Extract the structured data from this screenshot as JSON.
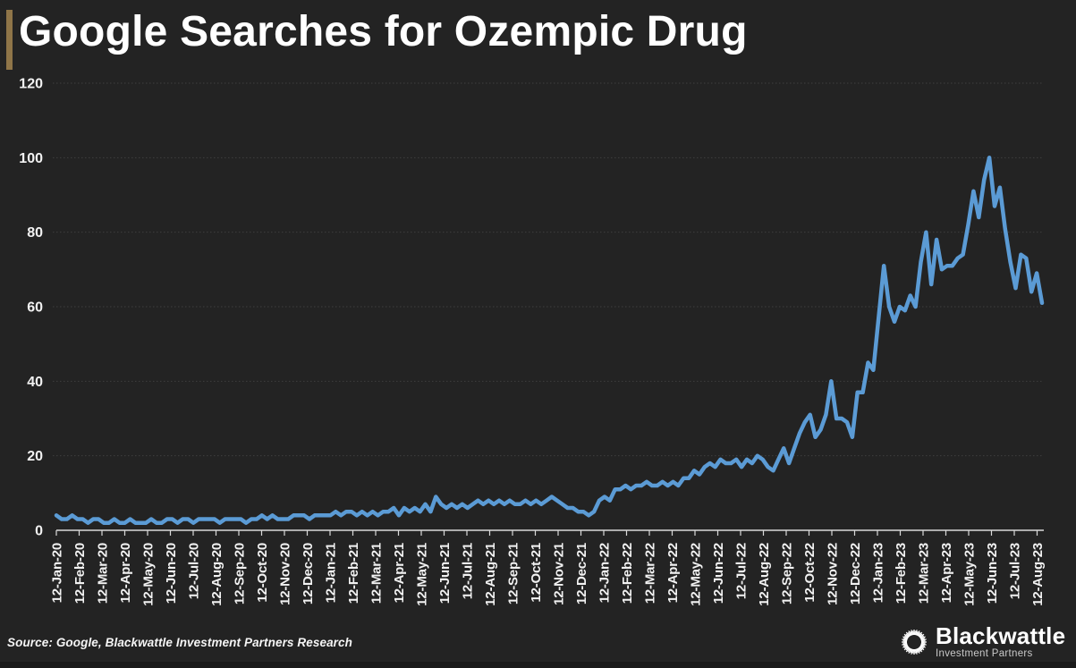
{
  "header": {
    "title": "Google Searches for Ozempic Drug"
  },
  "footer": {
    "source_note": "Source: Google, Blackwattle Investment Partners Research",
    "brand": {
      "icon": "sunburst-logo-icon",
      "name": "Blackwattle",
      "tagline": "Investment Partners"
    }
  },
  "colors": {
    "background": "#232323",
    "accent_bar": "#8F7548",
    "line": "#5B9BD5",
    "grid": "#3F3F3F",
    "axis": "#D9D9D9",
    "tick_text": "#F2F2F2",
    "bottom_strip": "#1A1A1A"
  },
  "chart_data": {
    "type": "line",
    "title": "Google Searches for Ozempic Drug",
    "xlabel": "",
    "ylabel": "",
    "ylim": [
      0,
      120
    ],
    "y_ticks": [
      0,
      20,
      40,
      60,
      80,
      100,
      120
    ],
    "grid": "horizontal-dotted",
    "legend": "none",
    "x_frequency": "weekly",
    "x_tick_rotation": -90,
    "x_tick_labels": [
      "12-Jan-20",
      "12-Feb-20",
      "12-Mar-20",
      "12-Apr-20",
      "12-May-20",
      "12-Jun-20",
      "12-Jul-20",
      "12-Aug-20",
      "12-Sep-20",
      "12-Oct-20",
      "12-Nov-20",
      "12-Dec-20",
      "12-Jan-21",
      "12-Feb-21",
      "12-Mar-21",
      "12-Apr-21",
      "12-May-21",
      "12-Jun-21",
      "12-Jul-21",
      "12-Aug-21",
      "12-Sep-21",
      "12-Oct-21",
      "12-Nov-21",
      "12-Dec-21",
      "12-Jan-22",
      "12-Feb-22",
      "12-Mar-22",
      "12-Apr-22",
      "12-May-22",
      "12-Jun-22",
      "12-Jul-22",
      "12-Aug-22",
      "12-Sep-22",
      "12-Oct-22",
      "12-Nov-22",
      "12-Dec-22",
      "12-Jan-23",
      "12-Feb-23",
      "12-Mar-23",
      "12-Apr-23",
      "12-May-23",
      "12-Jun-23",
      "12-Jul-23",
      "12-Aug-23"
    ],
    "values": [
      4,
      3,
      3,
      4,
      3,
      3,
      2,
      3,
      3,
      2,
      2,
      3,
      2,
      2,
      3,
      2,
      2,
      2,
      3,
      2,
      2,
      3,
      3,
      2,
      3,
      3,
      2,
      3,
      3,
      3,
      3,
      2,
      3,
      3,
      3,
      3,
      2,
      3,
      3,
      4,
      3,
      4,
      3,
      3,
      3,
      4,
      4,
      4,
      3,
      4,
      4,
      4,
      4,
      5,
      4,
      5,
      5,
      4,
      5,
      4,
      5,
      4,
      5,
      5,
      6,
      4,
      6,
      5,
      6,
      5,
      7,
      5,
      9,
      7,
      6,
      7,
      6,
      7,
      6,
      7,
      8,
      7,
      8,
      7,
      8,
      7,
      8,
      7,
      7,
      8,
      7,
      8,
      7,
      8,
      9,
      8,
      7,
      6,
      6,
      5,
      5,
      4,
      5,
      8,
      9,
      8,
      11,
      11,
      12,
      11,
      12,
      12,
      13,
      12,
      12,
      13,
      12,
      13,
      12,
      14,
      14,
      16,
      15,
      17,
      18,
      17,
      19,
      18,
      18,
      19,
      17,
      19,
      18,
      20,
      19,
      17,
      16,
      19,
      22,
      18,
      22,
      26,
      29,
      31,
      25,
      27,
      31,
      40,
      30,
      30,
      29,
      25,
      37,
      37,
      45,
      43,
      57,
      71,
      60,
      56,
      60,
      59,
      63,
      60,
      72,
      80,
      66,
      78,
      70,
      71,
      71,
      73,
      74,
      82,
      91,
      84,
      94,
      100,
      87,
      92,
      81,
      72,
      65,
      74,
      73,
      64,
      69,
      61
    ]
  }
}
